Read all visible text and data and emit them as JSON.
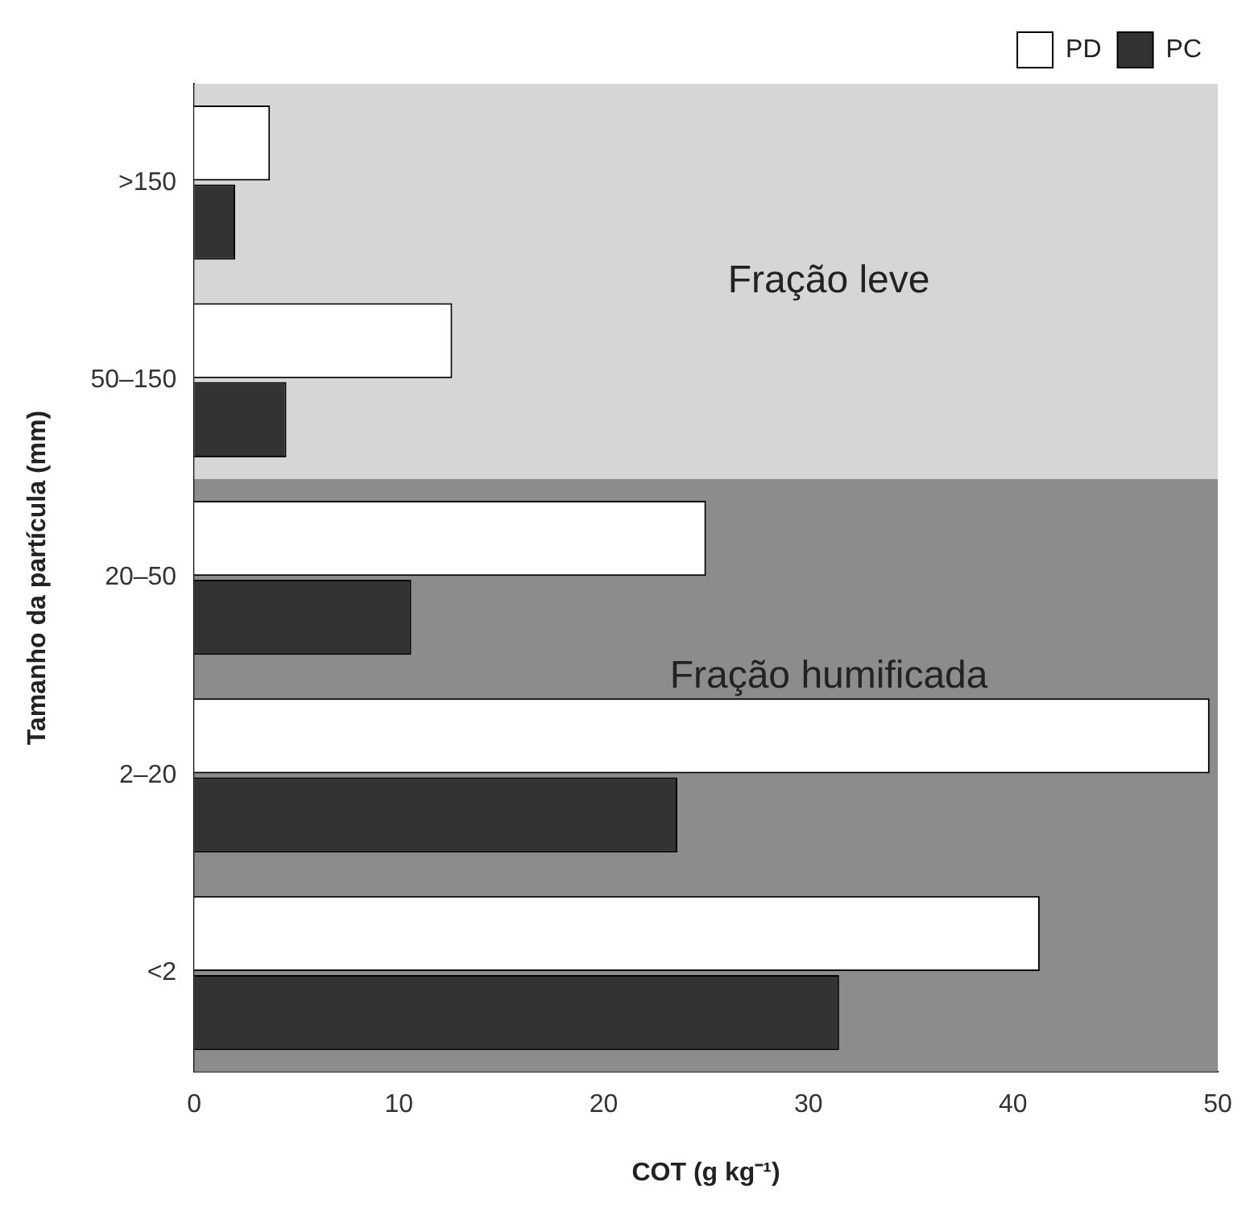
{
  "chart_data": {
    "type": "bar",
    "orientation": "horizontal",
    "xlabel": "COT (g kg⁻¹)",
    "ylabel": "Tamanho da partícula (mm)",
    "categories": [
      ">150",
      "50–150",
      "20–50",
      "2–20",
      "<2"
    ],
    "series": [
      {
        "name": "PD",
        "color": "#ffffff",
        "values": [
          3.7,
          12.6,
          25,
          49.6,
          41.3
        ]
      },
      {
        "name": "PC",
        "color": "#333333",
        "values": [
          2,
          4.5,
          10.6,
          23.6,
          31.5
        ]
      }
    ],
    "xlim": [
      0,
      50
    ],
    "xticks": [
      0,
      10,
      20,
      30,
      40,
      50
    ],
    "grid": false,
    "legend": "top right",
    "bands": [
      {
        "axis": "y",
        "from": ">150",
        "to": "50–150",
        "label": "Fração leve",
        "color": "#d6d6d6"
      },
      {
        "axis": "y",
        "from": "20–50",
        "to": "<2",
        "label": "Fração humificada",
        "color": "#8c8c8c"
      }
    ]
  }
}
